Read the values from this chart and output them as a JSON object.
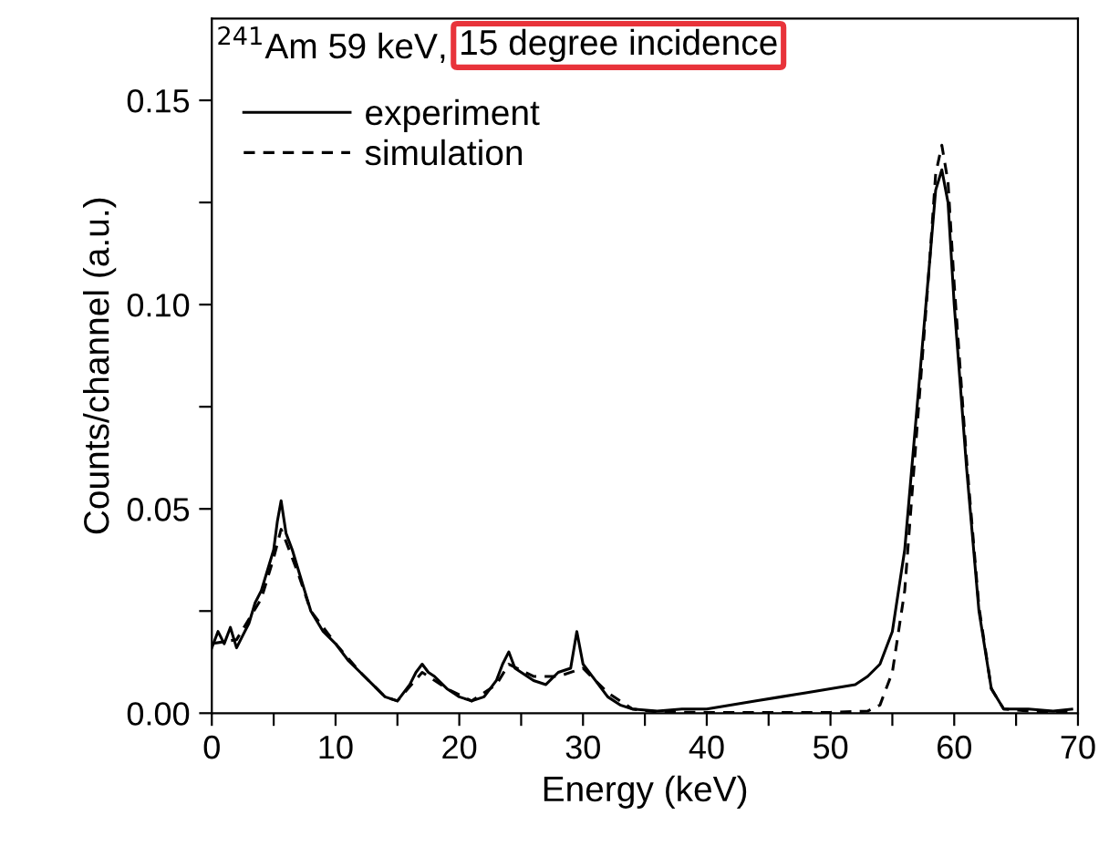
{
  "chart_data": {
    "type": "line",
    "xlabel": "Energy (keV)",
    "ylabel": "Counts/channel (a.u.)",
    "annotations": [
      "$^{241}$Am 59 keV,",
      "15 degree incidence"
    ],
    "xlim": [
      0,
      70
    ],
    "ylim": [
      0,
      0.17
    ],
    "xticks": [
      0,
      {
        "value": 5,
        "label": null
      },
      10,
      {
        "value": 15,
        "label": null
      },
      20,
      {
        "value": 25,
        "label": null
      },
      30,
      {
        "value": 35,
        "label": null
      },
      40,
      {
        "value": 45,
        "label": null
      },
      50,
      {
        "value": 55,
        "label": null
      },
      60,
      {
        "value": 65,
        "label": null
      },
      70
    ],
    "yticks": [
      {
        "value": 0,
        "label": "0.00"
      },
      {
        "value": 0.025,
        "label": null
      },
      {
        "value": 0.05,
        "label": "0.05"
      },
      {
        "value": 0.075,
        "label": null
      },
      {
        "value": 0.1,
        "label": "0.10"
      },
      {
        "value": 0.125,
        "label": null
      },
      {
        "value": 0.15,
        "label": "0.15"
      }
    ],
    "grid": false,
    "legend": "top left",
    "series": [
      {
        "name": "experiment",
        "color": "#000000",
        "line_style": "solid",
        "x": [
          0,
          0.5,
          1,
          1.5,
          2,
          2.5,
          3,
          3.5,
          4,
          4.5,
          5,
          5.3,
          5.6,
          6,
          6.5,
          7,
          7.5,
          8,
          9,
          10,
          11,
          12,
          13,
          14,
          15,
          16,
          16.5,
          17,
          17.5,
          18,
          19,
          20,
          21,
          22,
          23,
          23.5,
          24,
          24.5,
          25,
          26,
          27,
          28,
          29,
          29.5,
          30,
          31,
          32,
          33,
          34,
          36,
          38,
          40,
          42,
          44,
          46,
          48,
          50,
          52,
          53,
          54,
          55,
          56,
          57,
          58,
          58.5,
          59,
          59.5,
          60,
          61,
          62,
          63,
          64,
          66,
          68,
          69.5
        ],
        "values": [
          0.016,
          0.02,
          0.017,
          0.021,
          0.016,
          0.019,
          0.022,
          0.027,
          0.03,
          0.035,
          0.04,
          0.047,
          0.052,
          0.044,
          0.04,
          0.035,
          0.03,
          0.025,
          0.02,
          0.017,
          0.013,
          0.01,
          0.007,
          0.004,
          0.003,
          0.007,
          0.01,
          0.012,
          0.01,
          0.009,
          0.006,
          0.004,
          0.003,
          0.004,
          0.008,
          0.012,
          0.015,
          0.011,
          0.01,
          0.008,
          0.007,
          0.01,
          0.011,
          0.02,
          0.012,
          0.008,
          0.004,
          0.002,
          0.001,
          0.0005,
          0.001,
          0.001,
          0.002,
          0.003,
          0.004,
          0.005,
          0.006,
          0.007,
          0.009,
          0.012,
          0.02,
          0.04,
          0.075,
          0.11,
          0.128,
          0.133,
          0.125,
          0.1,
          0.06,
          0.025,
          0.006,
          0.001,
          0.001,
          0.0005,
          0.001
        ]
      },
      {
        "name": "simulation",
        "color": "#000000",
        "line_style": "dashed",
        "x": [
          0,
          2,
          4,
          5,
          5.6,
          6,
          7,
          8,
          10,
          12,
          14,
          15,
          17,
          19,
          21,
          23,
          24,
          26,
          28,
          30,
          32,
          34,
          36,
          40,
          45,
          50,
          53,
          54,
          55,
          56,
          57,
          58,
          58.5,
          59,
          59.5,
          60,
          61,
          62,
          63,
          64,
          66,
          68,
          69.5
        ],
        "values": [
          0.017,
          0.018,
          0.028,
          0.038,
          0.045,
          0.042,
          0.034,
          0.025,
          0.017,
          0.01,
          0.004,
          0.003,
          0.01,
          0.006,
          0.003,
          0.007,
          0.012,
          0.009,
          0.009,
          0.011,
          0.005,
          0.001,
          0.0003,
          0.0002,
          0.0002,
          0.0002,
          0.0005,
          0.002,
          0.01,
          0.03,
          0.07,
          0.11,
          0.132,
          0.139,
          0.13,
          0.105,
          0.062,
          0.026,
          0.006,
          0.001,
          0.0005,
          0.0003,
          0.0003
        ]
      }
    ]
  }
}
